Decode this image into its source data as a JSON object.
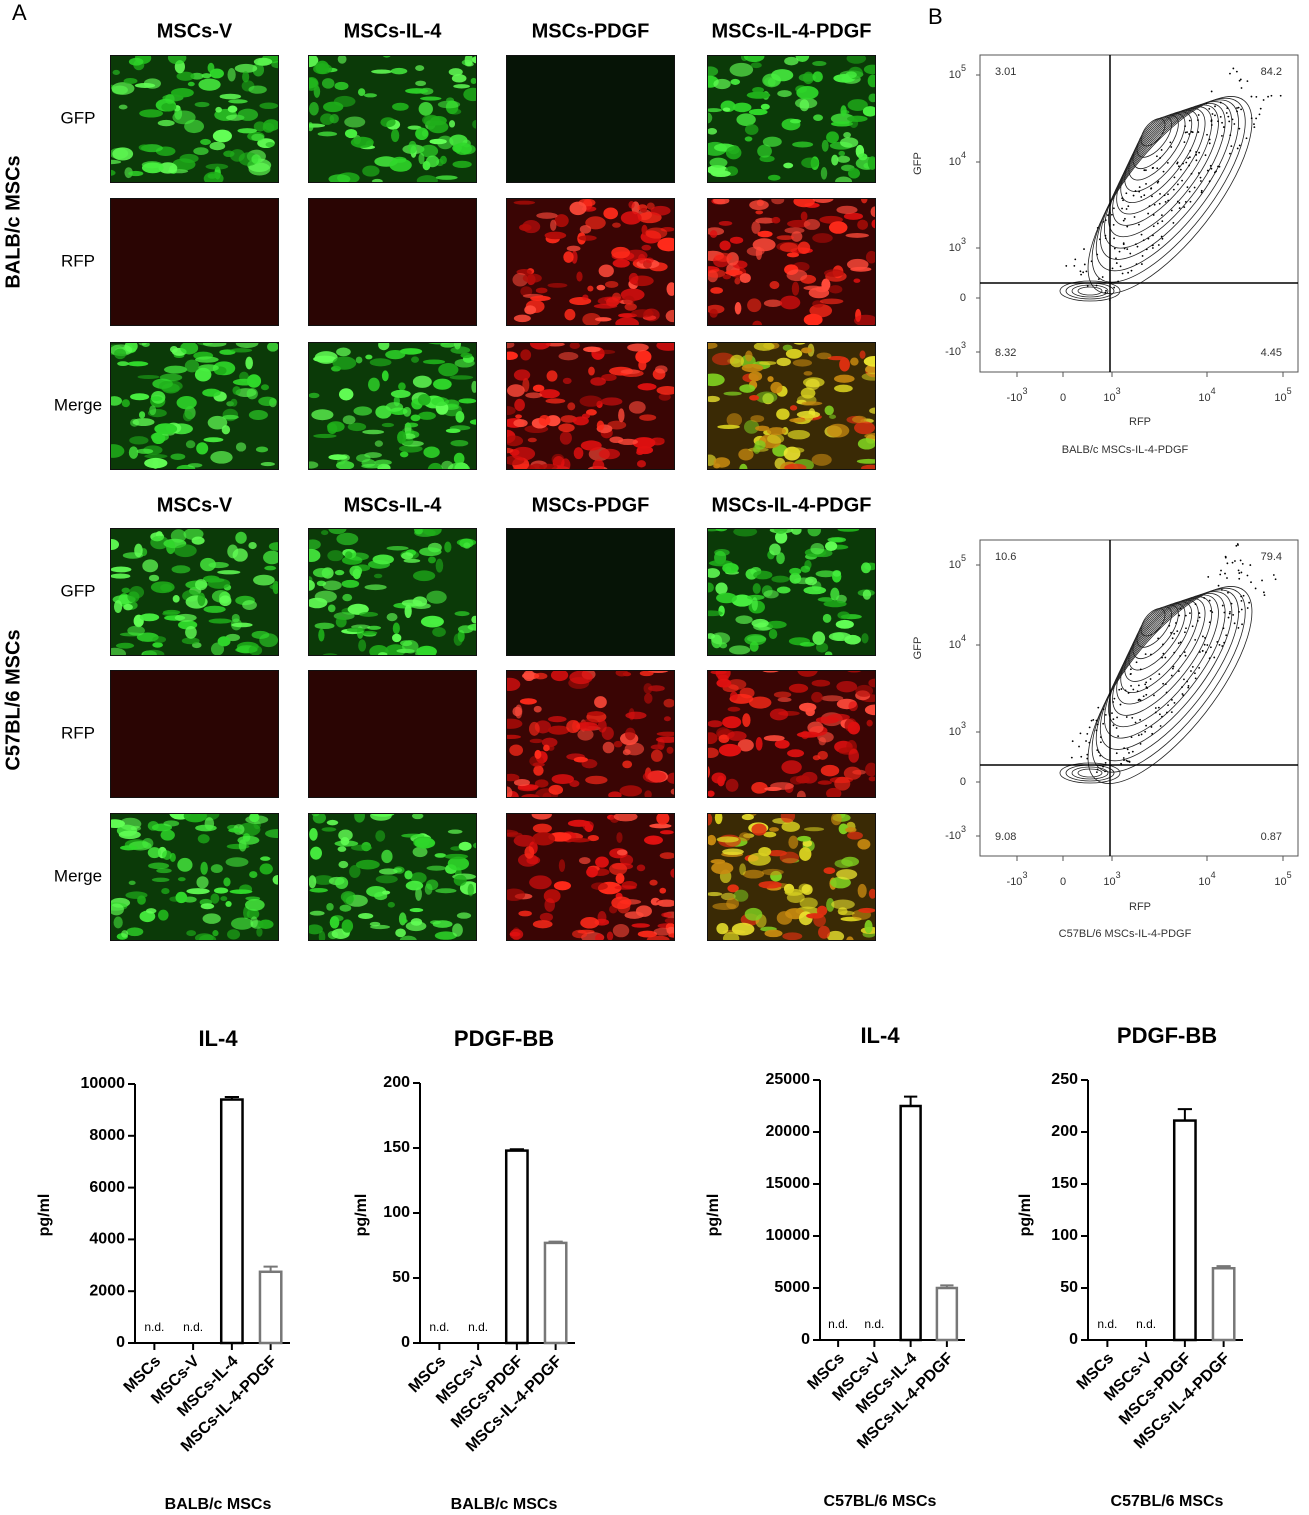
{
  "panel_a": {
    "label": "A",
    "groups": [
      {
        "label": "BALB/c MSCs",
        "columns": [
          "MSCs-V",
          "MSCs-IL-4",
          "MSCs-PDGF",
          "MSCs-IL-4-PDGF"
        ],
        "rows": [
          "GFP",
          "RFP",
          "Merge"
        ]
      },
      {
        "label": "C57BL/6 MSCs",
        "columns": [
          "MSCs-V",
          "MSCs-IL-4",
          "MSCs-PDGF",
          "MSCs-IL-4-PDGF"
        ],
        "rows": [
          "GFP",
          "RFP",
          "Merge"
        ]
      }
    ]
  },
  "panel_b": {
    "label": "B",
    "plots": [
      {
        "caption": "BALB/c MSCs-IL-4-PDGF",
        "x_label": "RFP",
        "y_label": "GFP",
        "quadrants": [
          "3.01",
          "84.2",
          "8.32",
          "4.45"
        ],
        "xticks": [
          {
            "base": "-10",
            "exp": "3"
          },
          {
            "base": "0"
          },
          {
            "base": "10",
            "exp": "3"
          },
          {
            "base": "10",
            "exp": "4"
          },
          {
            "base": "10",
            "exp": "5"
          }
        ],
        "yticks": [
          {
            "base": "10",
            "exp": "5"
          },
          {
            "base": "10",
            "exp": "4"
          },
          {
            "base": "10",
            "exp": "3"
          },
          {
            "base": "0"
          },
          {
            "base": "-10",
            "exp": "3"
          }
        ]
      },
      {
        "caption": "C57BL/6 MSCs-IL-4-PDGF",
        "x_label": "RFP",
        "y_label": "GFP",
        "quadrants": [
          "10.6",
          "79.4",
          "9.08",
          "0.87"
        ],
        "xticks": [
          {
            "base": "-10",
            "exp": "3"
          },
          {
            "base": "0"
          },
          {
            "base": "10",
            "exp": "3"
          },
          {
            "base": "10",
            "exp": "4"
          },
          {
            "base": "10",
            "exp": "5"
          }
        ],
        "yticks": [
          {
            "base": "10",
            "exp": "5"
          },
          {
            "base": "10",
            "exp": "4"
          },
          {
            "base": "10",
            "exp": "3"
          },
          {
            "base": "0"
          },
          {
            "base": "-10",
            "exp": "3"
          }
        ]
      }
    ]
  },
  "chart_data": [
    {
      "type": "bar",
      "title": "IL-4",
      "y_label": "pg/ml",
      "x_label": "BALB/c MSCs",
      "categories": [
        "MSCs",
        "MSCs-V",
        "MSCs-IL-4",
        "MSCs-IL-4-PDGF"
      ],
      "values": [
        null,
        null,
        9400,
        2750
      ],
      "errors": [
        null,
        null,
        100,
        200
      ],
      "value_labels": [
        "n.d.",
        "n.d.",
        null,
        null
      ],
      "colors": [
        "#000000",
        "#000000",
        "#000000",
        "#777777"
      ],
      "ylim": [
        0,
        10000
      ],
      "yticks": [
        0,
        2000,
        4000,
        6000,
        8000,
        10000
      ]
    },
    {
      "type": "bar",
      "title": "PDGF-BB",
      "y_label": "pg/ml",
      "x_label": "BALB/c MSCs",
      "categories": [
        "MSCs",
        "MSCs-V",
        "MSCs-PDGF",
        "MSCs-IL-4-PDGF"
      ],
      "values": [
        null,
        null,
        148,
        77
      ],
      "errors": [
        null,
        null,
        1,
        1
      ],
      "value_labels": [
        "n.d.",
        "n.d.",
        null,
        null
      ],
      "colors": [
        "#000000",
        "#000000",
        "#000000",
        "#777777"
      ],
      "ylim": [
        0,
        200
      ],
      "yticks": [
        0,
        50,
        100,
        150,
        200
      ]
    },
    {
      "type": "bar",
      "title": "IL-4",
      "y_label": "pg/ml",
      "x_label": "C57BL/6 MSCs",
      "categories": [
        "MSCs",
        "MSCs-V",
        "MSCs-IL-4",
        "MSCs-IL-4-PDGF"
      ],
      "values": [
        null,
        null,
        22500,
        5000
      ],
      "errors": [
        null,
        null,
        900,
        250
      ],
      "value_labels": [
        "n.d.",
        "n.d.",
        null,
        null
      ],
      "colors": [
        "#000000",
        "#000000",
        "#000000",
        "#777777"
      ],
      "ylim": [
        0,
        25000
      ],
      "yticks": [
        0,
        5000,
        10000,
        15000,
        20000,
        25000
      ]
    },
    {
      "type": "bar",
      "title": "PDGF-BB",
      "y_label": "pg/ml",
      "x_label": "C57BL/6 MSCs",
      "categories": [
        "MSCs",
        "MSCs-V",
        "MSCs-PDGF",
        "MSCs-IL-4-PDGF"
      ],
      "values": [
        null,
        null,
        211,
        69
      ],
      "errors": [
        null,
        null,
        11,
        2
      ],
      "value_labels": [
        "n.d.",
        "n.d.",
        null,
        null
      ],
      "colors": [
        "#000000",
        "#000000",
        "#000000",
        "#777777"
      ],
      "ylim": [
        0,
        250
      ],
      "yticks": [
        0,
        50,
        100,
        150,
        200,
        250
      ]
    }
  ]
}
